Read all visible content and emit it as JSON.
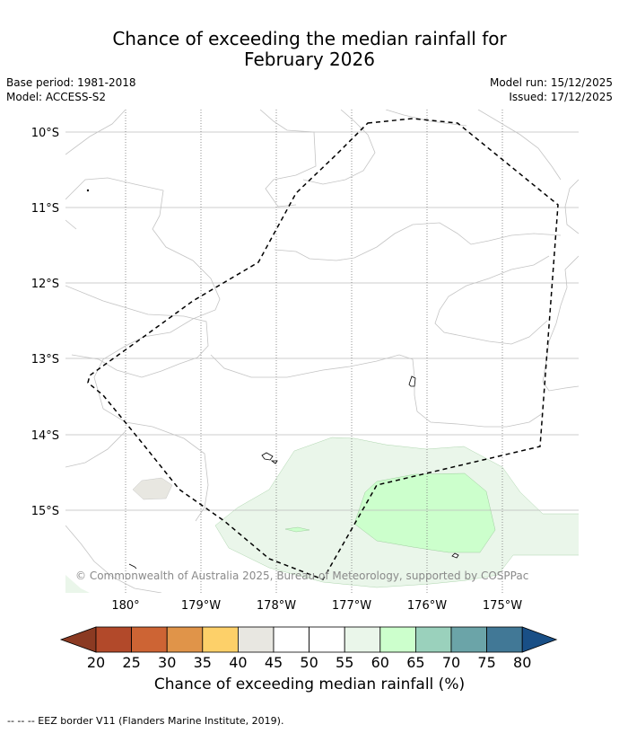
{
  "title_line1": "Chance of exceeding the median rainfall for",
  "title_line2": "February 2026",
  "meta": {
    "base_period": "Base period: 1981-2018",
    "model": "Model: ACCESS-S2",
    "model_run": "Model run: 15/12/2025",
    "issued": "Issued: 17/12/2025"
  },
  "map": {
    "lat_labels": [
      "10°S",
      "11°S",
      "12°S",
      "13°S",
      "14°S",
      "15°S"
    ],
    "lon_labels": [
      "180°",
      "179°W",
      "178°W",
      "177°W",
      "176°W",
      "175°W"
    ],
    "copyright": "© Commonwealth of Australia 2025, Bureau of Meteorology, supported by COSPPac"
  },
  "colorbar": {
    "ticks": [
      "20",
      "25",
      "30",
      "35",
      "40",
      "45",
      "50",
      "55",
      "60",
      "65",
      "70",
      "75",
      "80"
    ],
    "colors": [
      "#b2492a",
      "#cd6434",
      "#e09449",
      "#fdd069",
      "#e8e7e1",
      "#ffffff",
      "#ffffff",
      "#eaf6ea",
      "#ccffcc",
      "#9ad1bc",
      "#6ba4a8",
      "#417896"
    ],
    "low_extend": "#8b3a22",
    "high_extend": "#194f86",
    "label": "Chance of exceeding median rainfall (%)"
  },
  "footer": "--  --  -- EEZ border V11 (Flanders Marine Institute, 2019)."
}
